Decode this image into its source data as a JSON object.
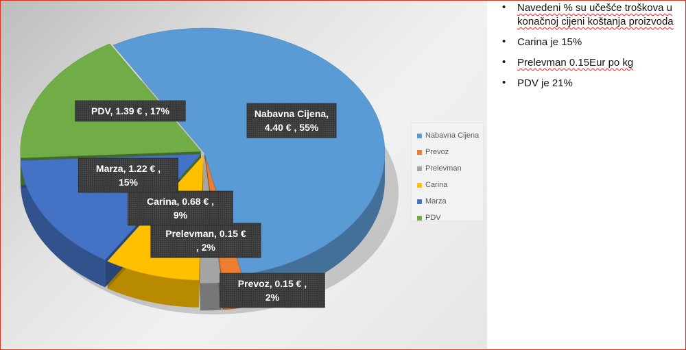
{
  "chart_data": {
    "type": "pie",
    "title": "",
    "slices": [
      {
        "name": "Nabavna Cijena",
        "value": 4.4,
        "percent": 55,
        "label_line1": "Nabavna Cijena,",
        "label_line2": "4.40  € , 55%",
        "color": "#5b9bd5"
      },
      {
        "name": "Prevoz",
        "value": 0.15,
        "percent": 2,
        "label_line1": "Prevoz,  0.15  € ,",
        "label_line2": "2%",
        "color": "#ed7d31"
      },
      {
        "name": "Prelevman",
        "value": 0.15,
        "percent": 2,
        "label_line1": "Prelevman,  0.15  €",
        "label_line2": ", 2%",
        "color": "#a5a5a5"
      },
      {
        "name": "Carina",
        "value": 0.68,
        "percent": 9,
        "label_line1": "Carina,  0.68  € ,",
        "label_line2": "9%",
        "color": "#ffc000"
      },
      {
        "name": "Marza",
        "value": 1.22,
        "percent": 15,
        "label_line1": "Marza,  1.22  € ,",
        "label_line2": "15%",
        "color": "#4472c4"
      },
      {
        "name": "PDV",
        "value": 1.39,
        "percent": 17,
        "label_line1": "PDV,  1.39  € , 17%",
        "label_line2": "",
        "color": "#70ad47"
      }
    ],
    "legend": {
      "position": "right",
      "entries": [
        "Nabavna Cijena",
        "Prevoz",
        "Prelevman",
        "Carina",
        "Marza",
        "PDV"
      ]
    },
    "style": "3d-exploded"
  },
  "notes": [
    {
      "text": "Navedeni % su učešće troškova u konačnoj cijeni koštanja proizvoda"
    },
    {
      "text": "Carina je 15%"
    },
    {
      "text": "Prelevman 0.15Eur po kg"
    },
    {
      "text": "PDV je 21%"
    }
  ],
  "bullet": "•",
  "colors": {
    "frame": "#e0301e",
    "label_bg": "#3b3b3b",
    "label_text": "#ffffff"
  }
}
